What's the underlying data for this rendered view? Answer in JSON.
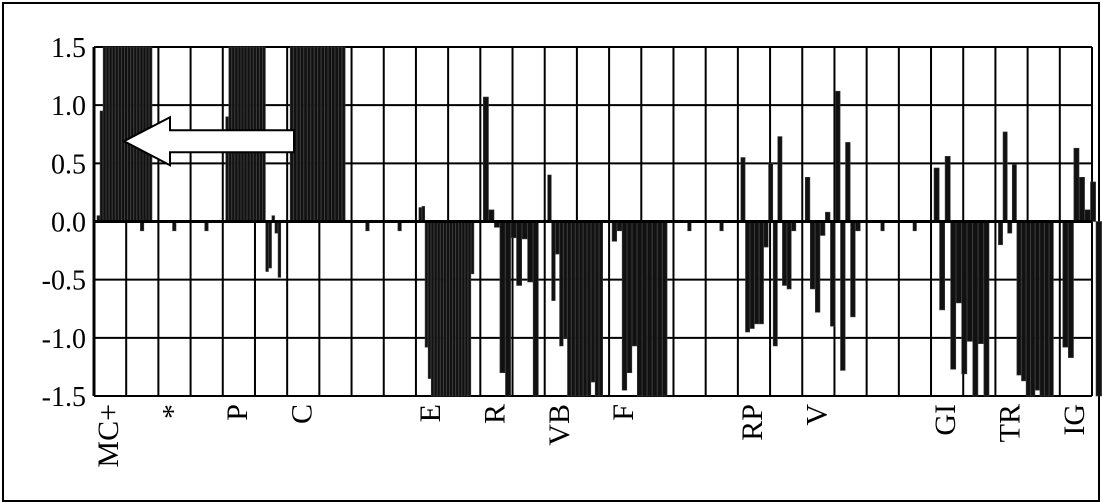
{
  "chart_data": {
    "type": "bar",
    "title": "",
    "xlabel": "",
    "ylabel": "",
    "ylim": [
      -1.5,
      1.5
    ],
    "yticks": [
      "1.5",
      "1.0",
      "0.5",
      "0.0",
      "-0.5",
      "-1.0",
      "-1.5"
    ],
    "grid": true,
    "legend": "none",
    "bar_color": "#111111",
    "slots": 31,
    "category_labels": [
      {
        "label": "MC+",
        "slot": 1
      },
      {
        "label": "*",
        "slot": 3
      },
      {
        "label": "P",
        "slot": 5
      },
      {
        "label": "C",
        "slot": 7
      },
      {
        "label": "E",
        "slot": 11
      },
      {
        "label": "R",
        "slot": 13
      },
      {
        "label": "VB",
        "slot": 15
      },
      {
        "label": "F",
        "slot": 17
      },
      {
        "label": "RP",
        "slot": 21
      },
      {
        "label": "V",
        "slot": 23
      },
      {
        "label": "GI",
        "slot": 27
      },
      {
        "label": "TR",
        "slot": 29
      },
      {
        "label": "IG",
        "slot": 31
      }
    ],
    "groups": [
      {
        "slot": 1,
        "values": [
          0.05,
          0.95,
          1.5,
          1.5,
          1.5,
          1.5,
          1.5,
          1.5,
          1.5,
          1.5,
          1.5,
          1.5,
          1.5,
          1.5,
          1.5,
          1.5,
          1.5,
          1.5
        ]
      },
      {
        "slot": 2,
        "values": [
          -0.08
        ]
      },
      {
        "slot": 3,
        "values": [
          -0.08
        ]
      },
      {
        "slot": 4,
        "values": [
          -0.08
        ]
      },
      {
        "slot": 5,
        "values": [
          0.9,
          1.5,
          1.5,
          1.5,
          1.5,
          1.5,
          1.5,
          1.5,
          1.5,
          1.5,
          1.5,
          1.5,
          1.5,
          -0.43,
          -0.4,
          0.05,
          -0.1,
          -0.48
        ]
      },
      {
        "slot": 7,
        "values": [
          1.5,
          1.5,
          1.5,
          1.5,
          1.5,
          1.5,
          1.5,
          1.5,
          1.5,
          1.5,
          1.5,
          1.5,
          1.5,
          1.5,
          1.5,
          1.5
        ]
      },
      {
        "slot": 9,
        "values": [
          -0.08
        ]
      },
      {
        "slot": 10,
        "values": [
          -0.08
        ]
      },
      {
        "slot": 11,
        "values": [
          0.12,
          0.13,
          -1.08,
          -1.35,
          -1.5,
          -1.5,
          -1.5,
          -1.5,
          -1.5,
          -1.5,
          -1.5,
          -1.5,
          -1.5,
          -1.5,
          -1.5,
          -1.5,
          -1.5,
          -0.45
        ]
      },
      {
        "slot": 13,
        "values": [
          1.07,
          0.1,
          -0.05,
          -1.3,
          -1.5,
          -0.14,
          -0.55,
          -0.15,
          -0.52,
          -1.5
        ]
      },
      {
        "slot": 15,
        "values": [
          0.4,
          -0.68,
          -0.28,
          -1.07,
          -1.0,
          -1.5,
          -1.5,
          -1.5,
          -1.5,
          -1.5,
          -1.5,
          -1.38,
          -1.5,
          -1.5
        ]
      },
      {
        "slot": 17,
        "values": [
          -0.17,
          -0.08,
          -1.45,
          -1.3,
          -1.07,
          -1.5,
          -1.5,
          -1.5,
          -1.5,
          -1.5,
          -1.5
        ]
      },
      {
        "slot": 19,
        "values": [
          -0.08
        ]
      },
      {
        "slot": 20,
        "values": [
          -0.08
        ]
      },
      {
        "slot": 21,
        "values": [
          0.55,
          -0.95,
          -0.92,
          -0.88,
          -0.88,
          -0.22,
          0.5,
          -1.07,
          0.73,
          -0.55,
          -0.58,
          -0.08
        ]
      },
      {
        "slot": 23,
        "values": [
          0.38,
          -0.58,
          -0.78,
          -0.12,
          0.08,
          -0.9,
          1.12,
          -1.28,
          0.68,
          -0.82,
          -0.08
        ]
      },
      {
        "slot": 25,
        "values": [
          -0.08
        ]
      },
      {
        "slot": 26,
        "values": [
          -0.08
        ]
      },
      {
        "slot": 27,
        "values": [
          0.46,
          -0.76,
          0.56,
          -1.27,
          -0.7,
          -1.31,
          -1.03,
          -1.5,
          -1.05,
          -1.5
        ]
      },
      {
        "slot": 29,
        "values": [
          -0.2,
          0.77,
          -0.1,
          0.49,
          -1.32,
          -1.37,
          -1.5,
          -1.5,
          -1.45,
          -1.5,
          -1.5,
          -1.5
        ]
      },
      {
        "slot": 31,
        "values": [
          -1.08,
          -1.17,
          0.63,
          0.38,
          0.1,
          0.34,
          -1.5,
          -1.5,
          -1.23,
          -1.5
        ]
      }
    ],
    "annotations": [
      {
        "type": "arrow",
        "direction": "left",
        "color": "#ffffff",
        "slot": 1
      }
    ]
  }
}
